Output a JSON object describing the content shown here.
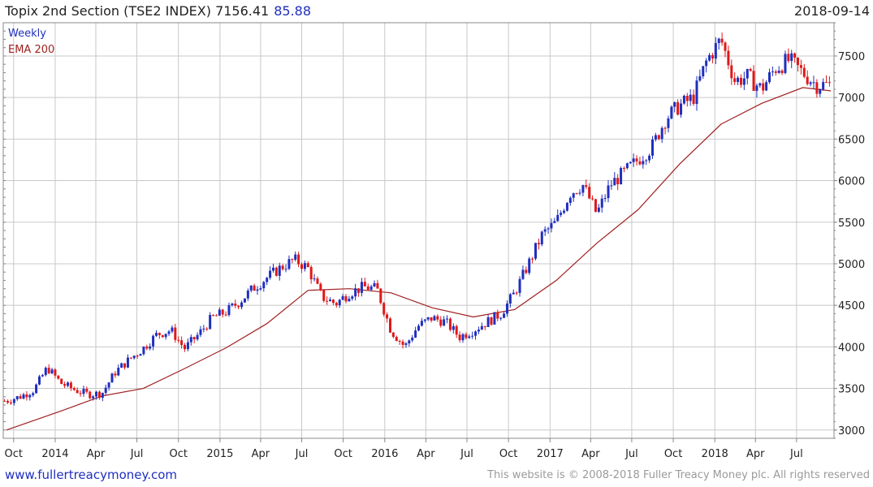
{
  "header": {
    "title": "Topix 2nd Section (TSE2 INDEX)",
    "last_value": "7156.41",
    "change": "85.88",
    "date": "2018-09-14"
  },
  "footer": {
    "site": "www.fullertreacymoney.com",
    "copyright": "This website is © 2008-2018 Fuller Treacy Money plc. All rights reserved"
  },
  "colors": {
    "up": "#1f2fbf",
    "down": "#e01818",
    "ema": "#a02020",
    "grid": "#c8c8c8",
    "frame": "#888888"
  },
  "chart_data": {
    "type": "line",
    "frequency": "weekly",
    "legend": [
      "Weekly",
      "EMA 200"
    ],
    "legend_position": "top-left",
    "grid": true,
    "ylim": [
      2900,
      7900
    ],
    "y_ticks": [
      3000,
      3500,
      4000,
      4500,
      5000,
      5500,
      6000,
      6500,
      7000,
      7500
    ],
    "x_tick_labels": [
      "Oct",
      "2014",
      "Apr",
      "Jul",
      "Oct",
      "2015",
      "Apr",
      "Jul",
      "Oct",
      "2016",
      "Apr",
      "Jul",
      "Oct",
      "2017",
      "Apr",
      "Jul",
      "Oct",
      "2018",
      "Apr",
      "Jul"
    ],
    "x_range": [
      "2013-09",
      "2018-09"
    ],
    "series": [
      {
        "name": "Weekly",
        "style": "candlestick",
        "x_monthly": [
          "2013-09",
          "2013-10",
          "2013-11",
          "2013-12",
          "2014-01",
          "2014-02",
          "2014-03",
          "2014-04",
          "2014-05",
          "2014-06",
          "2014-07",
          "2014-08",
          "2014-09",
          "2014-10",
          "2014-11",
          "2014-12",
          "2015-01",
          "2015-02",
          "2015-03",
          "2015-04",
          "2015-05",
          "2015-06",
          "2015-07",
          "2015-08",
          "2015-09",
          "2015-10",
          "2015-11",
          "2015-12",
          "2016-01",
          "2016-02",
          "2016-03",
          "2016-04",
          "2016-05",
          "2016-06",
          "2016-07",
          "2016-08",
          "2016-09",
          "2016-10",
          "2016-11",
          "2016-12",
          "2017-01",
          "2017-02",
          "2017-03",
          "2017-04",
          "2017-05",
          "2017-06",
          "2017-07",
          "2017-08",
          "2017-09",
          "2017-10",
          "2017-11",
          "2017-12",
          "2018-01",
          "2018-02",
          "2018-03",
          "2018-04",
          "2018-05",
          "2018-06",
          "2018-07",
          "2018-08",
          "2018-09"
        ],
        "close_monthly": [
          3350,
          3400,
          3480,
          3750,
          3560,
          3480,
          3430,
          3440,
          3700,
          3850,
          3980,
          4150,
          4200,
          3980,
          4150,
          4350,
          4420,
          4550,
          4700,
          4830,
          4950,
          5050,
          4950,
          4600,
          4520,
          4650,
          4720,
          4700,
          4200,
          4000,
          4250,
          4350,
          4300,
          4120,
          4200,
          4300,
          4400,
          4650,
          5000,
          5350,
          5500,
          5850,
          5950,
          5600,
          5950,
          6100,
          6250,
          6400,
          6750,
          6900,
          7000,
          7450,
          7700,
          7200,
          7250,
          7100,
          7350,
          7450,
          7300,
          7150,
          7156
        ]
      },
      {
        "name": "EMA 200",
        "style": "line",
        "x_monthly": [
          "2013-09",
          "2014-01",
          "2014-04",
          "2014-07",
          "2014-10",
          "2015-01",
          "2015-04",
          "2015-07",
          "2015-10",
          "2016-01",
          "2016-04",
          "2016-07",
          "2016-10",
          "2017-01",
          "2017-04",
          "2017-07",
          "2017-10",
          "2018-01",
          "2018-04",
          "2018-07",
          "2018-09"
        ],
        "values": [
          3000,
          3230,
          3410,
          3500,
          3740,
          3990,
          4280,
          4680,
          4700,
          4650,
          4470,
          4360,
          4450,
          4800,
          5250,
          5650,
          6200,
          6680,
          6930,
          7120,
          7080
        ]
      }
    ]
  }
}
